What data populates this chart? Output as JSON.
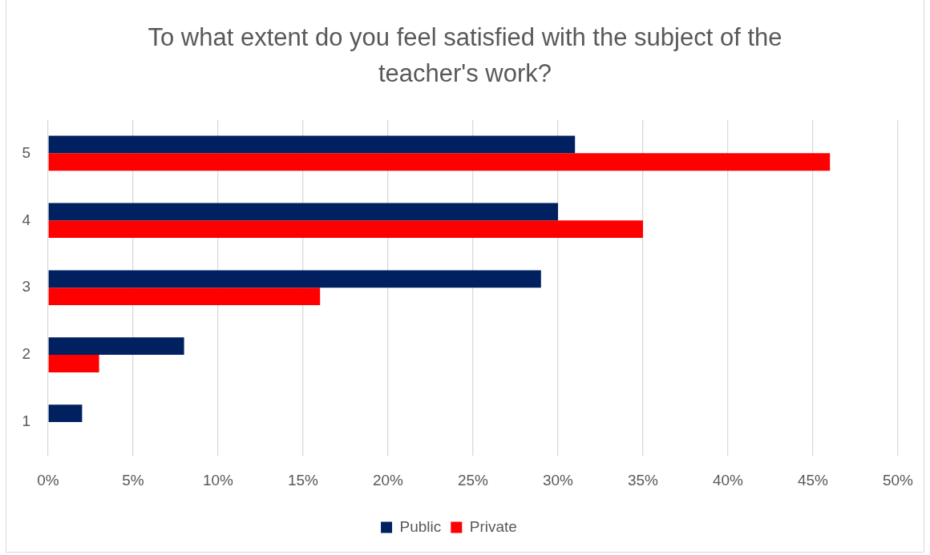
{
  "chart_data": {
    "type": "bar",
    "orientation": "horizontal",
    "title": "To what extent do you feel satisfied with the subject of the teacher's work?",
    "categories": [
      "5",
      "4",
      "3",
      "2",
      "1"
    ],
    "series": [
      {
        "name": "Public",
        "color": "#002060",
        "values": [
          31,
          30,
          29,
          8,
          2
        ]
      },
      {
        "name": "Private",
        "color": "#ff0000",
        "values": [
          46,
          35,
          16,
          3,
          0
        ]
      }
    ],
    "xlim": [
      0,
      50
    ],
    "xticks": [
      {
        "value": 0,
        "label": "0%"
      },
      {
        "value": 5,
        "label": "5%"
      },
      {
        "value": 10,
        "label": "10%"
      },
      {
        "value": 15,
        "label": "15%"
      },
      {
        "value": 20,
        "label": "20%"
      },
      {
        "value": 25,
        "label": "25%"
      },
      {
        "value": 30,
        "label": "30%"
      },
      {
        "value": 35,
        "label": "35%"
      },
      {
        "value": 40,
        "label": "40%"
      },
      {
        "value": 45,
        "label": "45%"
      },
      {
        "value": 50,
        "label": "50%"
      }
    ],
    "grid": "x",
    "legend": "bottom"
  }
}
